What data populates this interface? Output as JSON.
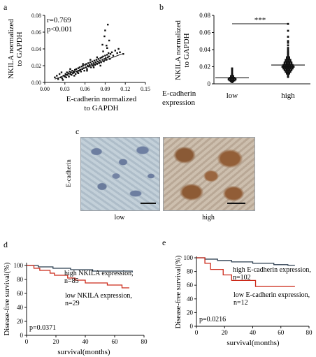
{
  "panels": {
    "a": {
      "letter": "a",
      "stats": {
        "r": "r=0.769",
        "p": "p<0.001"
      },
      "ylabel_line1": "NKILA normalized",
      "ylabel_line2": "to GAPDH",
      "xlabel_line1": "E-cadherin normalized",
      "xlabel_line2": "to GAPDH",
      "xticks": [
        "0.00",
        "0.03",
        "0.06",
        "0.09",
        "0.12",
        "0.15"
      ],
      "yticks": [
        "0.00",
        "0.02",
        "0.04",
        "0.06",
        "0.08"
      ]
    },
    "b": {
      "letter": "b",
      "ylabel_line1": "NKILA normalized",
      "ylabel_line2": "to GAPDH",
      "xlabel_line1": "E-cadherin",
      "xlabel_line2": "expression",
      "significance": "***",
      "groups": [
        "low",
        "high"
      ],
      "yticks": [
        "0",
        "0.02",
        "0.04",
        "0.06",
        "0.08"
      ]
    },
    "c": {
      "letter": "c",
      "side_label": "E-cadherin",
      "captions": [
        "low",
        "high"
      ]
    },
    "d": {
      "letter": "d",
      "ylabel": "Disease-free survival(%)",
      "xlabel": "survival(months)",
      "xticks": [
        "0",
        "20",
        "40",
        "60",
        "80"
      ],
      "yticks": [
        "0",
        "20",
        "40",
        "60",
        "80",
        "100"
      ],
      "legend_high_1": "high NKILA expression,",
      "legend_high_2": "n=85",
      "legend_low_1": "low NKILA expression,",
      "legend_low_2": "n=29",
      "pvalue": "p=0.0371"
    },
    "e": {
      "letter": "e",
      "ylabel": "Disease-free survival(%)",
      "xlabel": "survival(months)",
      "xticks": [
        "0",
        "20",
        "40",
        "60",
        "80"
      ],
      "yticks": [
        "0",
        "20",
        "40",
        "60",
        "80",
        "100"
      ],
      "legend_high_1": "high E-cadherin expression,",
      "legend_high_2": "n=102",
      "legend_low_1": "low E-cadherin expression,",
      "legend_low_2": "n=12",
      "pvalue": "p=0.0216"
    }
  },
  "chart_data": [
    {
      "type": "scatter",
      "panel": "a",
      "xlabel": "E-cadherin normalized to GAPDH",
      "ylabel": "NKILA normalized to GAPDH",
      "xlim": [
        0,
        0.15
      ],
      "ylim": [
        0,
        0.08
      ],
      "annotations": [
        "r=0.769",
        "p<0.001"
      ],
      "trend_line": {
        "x": [
          0.015,
          0.115
        ],
        "y": [
          0.004,
          0.034
        ]
      },
      "x": [
        0.015,
        0.018,
        0.02,
        0.022,
        0.024,
        0.025,
        0.026,
        0.028,
        0.03,
        0.031,
        0.032,
        0.033,
        0.034,
        0.035,
        0.036,
        0.037,
        0.038,
        0.039,
        0.04,
        0.041,
        0.042,
        0.043,
        0.044,
        0.045,
        0.046,
        0.047,
        0.048,
        0.049,
        0.05,
        0.051,
        0.052,
        0.053,
        0.054,
        0.055,
        0.056,
        0.057,
        0.058,
        0.059,
        0.06,
        0.061,
        0.062,
        0.063,
        0.064,
        0.065,
        0.066,
        0.067,
        0.068,
        0.069,
        0.07,
        0.071,
        0.072,
        0.073,
        0.074,
        0.075,
        0.076,
        0.077,
        0.078,
        0.079,
        0.08,
        0.081,
        0.082,
        0.083,
        0.084,
        0.085,
        0.086,
        0.087,
        0.088,
        0.089,
        0.09,
        0.091,
        0.092,
        0.093,
        0.094,
        0.095,
        0.096,
        0.097,
        0.098,
        0.1,
        0.102,
        0.105,
        0.108,
        0.11,
        0.112,
        0.117,
        0.027,
        0.033,
        0.038,
        0.044,
        0.05,
        0.057,
        0.063,
        0.068,
        0.073,
        0.078,
        0.083,
        0.087,
        0.092,
        0.096,
        0.09,
        0.094,
        0.086,
        0.093,
        0.089
      ],
      "y": [
        0.006,
        0.008,
        0.004,
        0.01,
        0.006,
        0.012,
        0.005,
        0.008,
        0.007,
        0.01,
        0.006,
        0.012,
        0.009,
        0.011,
        0.007,
        0.013,
        0.01,
        0.012,
        0.009,
        0.014,
        0.011,
        0.013,
        0.012,
        0.015,
        0.01,
        0.016,
        0.013,
        0.012,
        0.017,
        0.014,
        0.018,
        0.015,
        0.013,
        0.019,
        0.016,
        0.02,
        0.017,
        0.014,
        0.021,
        0.018,
        0.022,
        0.016,
        0.02,
        0.023,
        0.019,
        0.021,
        0.024,
        0.018,
        0.022,
        0.025,
        0.02,
        0.023,
        0.026,
        0.021,
        0.024,
        0.027,
        0.022,
        0.025,
        0.028,
        0.023,
        0.026,
        0.029,
        0.024,
        0.03,
        0.027,
        0.031,
        0.025,
        0.028,
        0.032,
        0.029,
        0.027,
        0.033,
        0.03,
        0.035,
        0.031,
        0.028,
        0.034,
        0.036,
        0.032,
        0.038,
        0.035,
        0.04,
        0.036,
        0.034,
        0.003,
        0.009,
        0.016,
        0.008,
        0.011,
        0.022,
        0.014,
        0.027,
        0.018,
        0.03,
        0.02,
        0.037,
        0.044,
        0.05,
        0.062,
        0.069,
        0.045,
        0.041,
        0.055
      ]
    },
    {
      "type": "scatter",
      "panel": "b",
      "categories": [
        "low",
        "high"
      ],
      "ylabel": "NKILA normalized to GAPDH",
      "ylim": [
        0,
        0.08
      ],
      "significance": "***",
      "series": [
        {
          "name": "low",
          "mean": 0.007,
          "values": [
            0.002,
            0.003,
            0.003,
            0.004,
            0.004,
            0.004,
            0.005,
            0.005,
            0.005,
            0.005,
            0.006,
            0.006,
            0.006,
            0.006,
            0.007,
            0.007,
            0.007,
            0.008,
            0.008,
            0.009,
            0.009,
            0.01,
            0.011,
            0.012,
            0.013,
            0.015,
            0.017,
            0.018
          ]
        },
        {
          "name": "high",
          "mean": 0.022,
          "values": [
            0.008,
            0.009,
            0.01,
            0.011,
            0.012,
            0.012,
            0.013,
            0.013,
            0.014,
            0.014,
            0.014,
            0.015,
            0.015,
            0.015,
            0.016,
            0.016,
            0.016,
            0.016,
            0.017,
            0.017,
            0.017,
            0.017,
            0.018,
            0.018,
            0.018,
            0.018,
            0.018,
            0.019,
            0.019,
            0.019,
            0.019,
            0.019,
            0.02,
            0.02,
            0.02,
            0.02,
            0.02,
            0.02,
            0.021,
            0.021,
            0.021,
            0.021,
            0.021,
            0.022,
            0.022,
            0.022,
            0.022,
            0.022,
            0.023,
            0.023,
            0.023,
            0.023,
            0.024,
            0.024,
            0.024,
            0.024,
            0.025,
            0.025,
            0.025,
            0.025,
            0.026,
            0.026,
            0.026,
            0.027,
            0.027,
            0.027,
            0.028,
            0.028,
            0.028,
            0.029,
            0.029,
            0.03,
            0.03,
            0.031,
            0.031,
            0.032,
            0.033,
            0.034,
            0.035,
            0.036,
            0.037,
            0.038,
            0.04,
            0.042,
            0.045,
            0.048,
            0.05,
            0.055,
            0.062,
            0.07
          ]
        }
      ]
    },
    {
      "type": "line",
      "panel": "d",
      "xlabel": "survival(months)",
      "ylabel": "Disease-free survival(%)",
      "xlim": [
        0,
        80
      ],
      "ylim": [
        0,
        100
      ],
      "annotations": [
        "p=0.0371"
      ],
      "series": [
        {
          "name": "high NKILA expression, n=85",
          "color": "#2b3d4f",
          "x": [
            0,
            8,
            18,
            30,
            45,
            72
          ],
          "y": [
            100,
            98,
            96,
            94,
            92,
            90
          ]
        },
        {
          "name": "low NKILA expression, n=29",
          "color": "#cc2a1a",
          "x": [
            0,
            5,
            9,
            16,
            19,
            28,
            33,
            40,
            55,
            65,
            70
          ],
          "y": [
            100,
            96,
            93,
            89,
            86,
            82,
            79,
            75,
            72,
            68,
            68
          ]
        }
      ]
    },
    {
      "type": "line",
      "panel": "e",
      "xlabel": "survival(months)",
      "ylabel": "Disease-free survival(%)",
      "xlim": [
        0,
        80
      ],
      "ylim": [
        0,
        100
      ],
      "annotations": [
        "p=0.0216"
      ],
      "series": [
        {
          "name": "high E-cadherin expression, n=102",
          "color": "#2b3d4f",
          "x": [
            0,
            6,
            15,
            25,
            40,
            55,
            65,
            70
          ],
          "y": [
            100,
            98,
            96,
            94,
            92,
            90,
            89,
            89
          ]
        },
        {
          "name": "low E-cadherin expression, n=12",
          "color": "#cc2a1a",
          "x": [
            0,
            6,
            10,
            19,
            25,
            42,
            70
          ],
          "y": [
            100,
            92,
            83,
            75,
            67,
            58,
            58
          ]
        }
      ]
    }
  ]
}
